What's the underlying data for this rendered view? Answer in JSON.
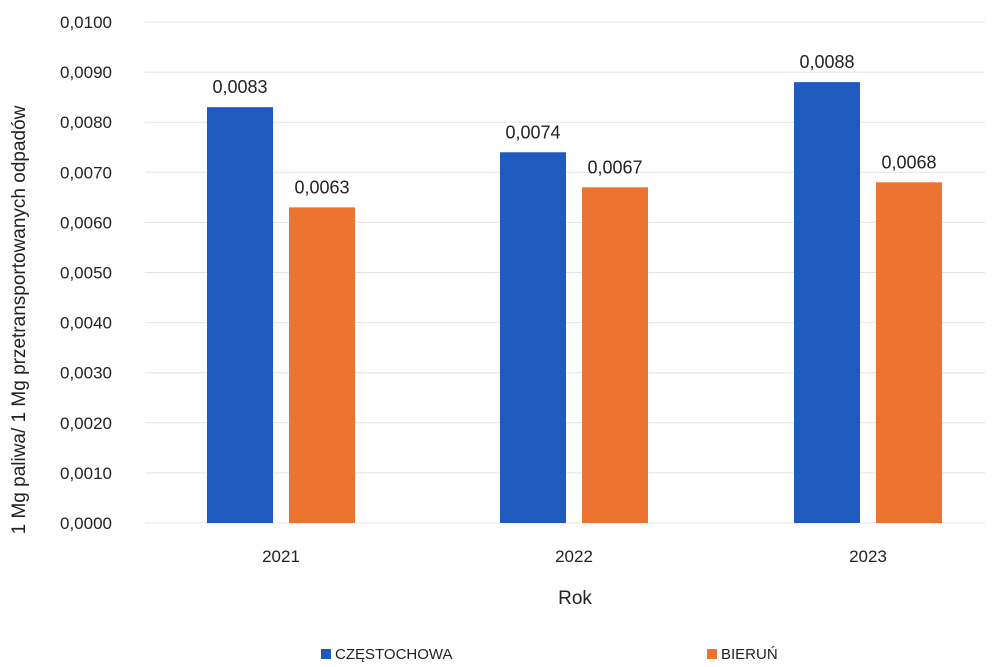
{
  "chart_data": {
    "type": "bar",
    "title": "",
    "xlabel": "Rok",
    "ylabel": "1 Mg paliwa/ 1 Mg  przetransportowanych odpadów",
    "categories": [
      "2021",
      "2022",
      "2023"
    ],
    "series": [
      {
        "name": "CZĘSTOCHOWA",
        "color": "#1f5bbf",
        "values": [
          0.0083,
          0.0074,
          0.0088
        ],
        "labels": [
          "0,0083",
          "0,0074",
          "0,0088"
        ]
      },
      {
        "name": "BIERUŃ",
        "color": "#ec7330",
        "values": [
          0.0063,
          0.0067,
          0.0068
        ],
        "labels": [
          "0,0063",
          "0,0067",
          "0,0068"
        ]
      }
    ],
    "ylim": [
      0,
      0.01
    ],
    "yticks": [
      0,
      0.001,
      0.002,
      0.003,
      0.004,
      0.005,
      0.006,
      0.007,
      0.008,
      0.009,
      0.01
    ],
    "ytick_labels": [
      "0,0000",
      "0,0010",
      "0,0020",
      "0,0030",
      "0,0040",
      "0,0050",
      "0,0060",
      "0,0070",
      "0,0080",
      "0,0090",
      "0,0100"
    ],
    "grid": true,
    "legend_position": "bottom",
    "gridline_color": "#e4e4e4"
  }
}
